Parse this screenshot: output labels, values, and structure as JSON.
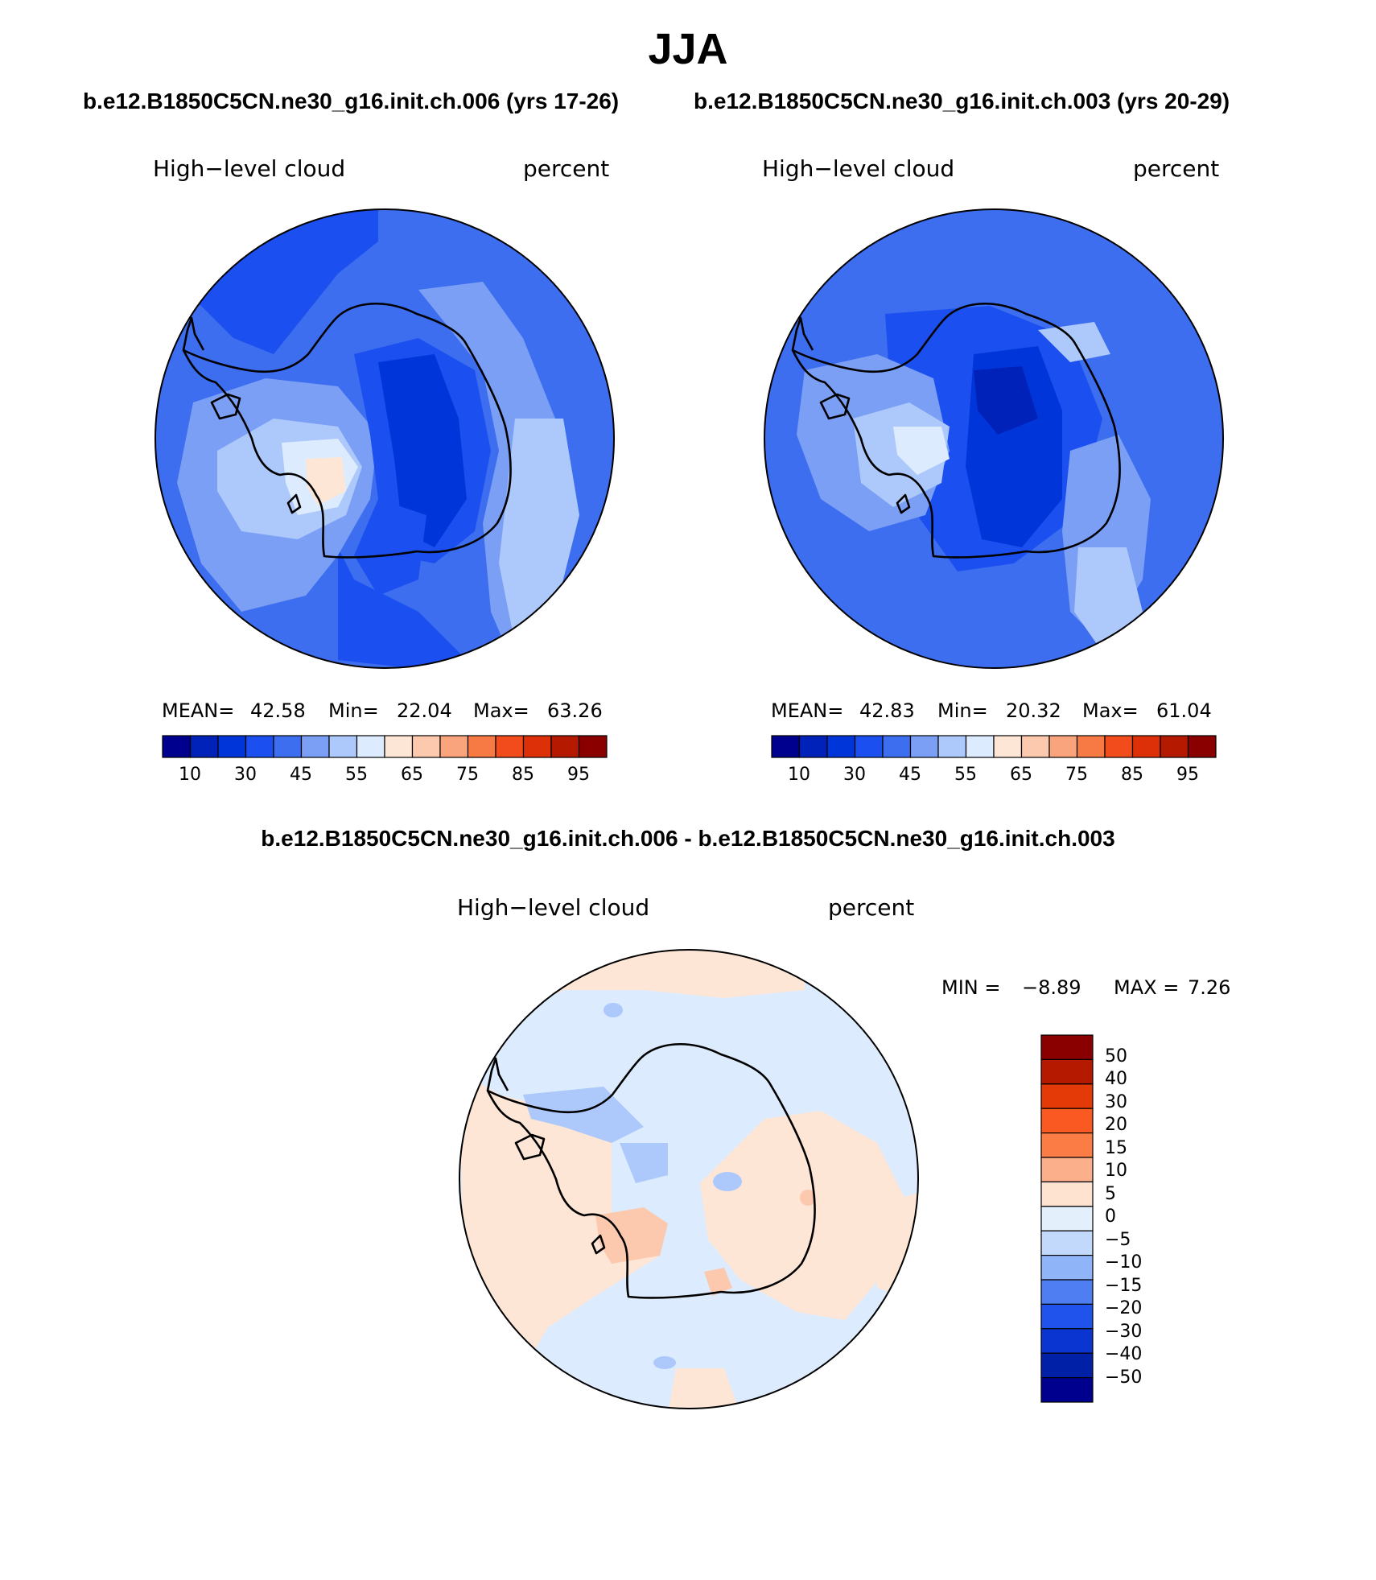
{
  "title": "JJA",
  "run_a": "b.e12.B1850C5CN.ne30_g16.init.ch.006 (yrs 17-26)",
  "run_b": "b.e12.B1850C5CN.ne30_g16.init.ch.003 (yrs 20-29)",
  "diff_title": "b.e12.B1850C5CN.ne30_g16.init.ch.006 - b.e12.B1850C5CN.ne30_g16.init.ch.003",
  "panels": [
    {
      "variable": "High−level cloud",
      "units": "percent",
      "mean_label": "MEAN=",
      "mean": "42.58",
      "min_label": "Min=",
      "min": "22.04",
      "max_label": "Max=",
      "max": "63.26"
    },
    {
      "variable": "High−level cloud",
      "units": "percent",
      "mean_label": "MEAN=",
      "mean": "42.83",
      "min_label": "Min=",
      "min": "20.32",
      "max_label": "Max=",
      "max": "61.04"
    }
  ],
  "diff_panel": {
    "variable": "High−level cloud",
    "units": "percent",
    "min_label": "MIN =",
    "min": "−8.89",
    "max_label": "MAX =",
    "max": "7.26"
  },
  "abs_colorbar": {
    "tick_labels": [
      "10",
      "30",
      "45",
      "55",
      "65",
      "75",
      "85",
      "95"
    ],
    "colors": [
      "#00008f",
      "#0022b8",
      "#0036d9",
      "#1b4ff0",
      "#3d6ef0",
      "#7a9ff5",
      "#adc8fb",
      "#dcebfd",
      "#fde6d6",
      "#fcc9ae",
      "#f9a47d",
      "#f77a45",
      "#f24c1c",
      "#dd3008",
      "#b51a00",
      "#8a0000"
    ]
  },
  "diff_colorbar": {
    "tick_labels": [
      "50",
      "40",
      "30",
      "20",
      "15",
      "10",
      "5",
      "0",
      "−5",
      "−10",
      "−15",
      "−20",
      "−30",
      "−40",
      "−50"
    ],
    "colors_top_to_bottom": [
      "#8a0000",
      "#b51a00",
      "#e33a08",
      "#fa5a22",
      "#fb7d45",
      "#fbaf8a",
      "#fde3d0",
      "#e4effc",
      "#c2d9fc",
      "#8fb4f8",
      "#4f7ef2",
      "#2052ec",
      "#0a35d0",
      "#0020a8",
      "#00008f"
    ]
  }
}
